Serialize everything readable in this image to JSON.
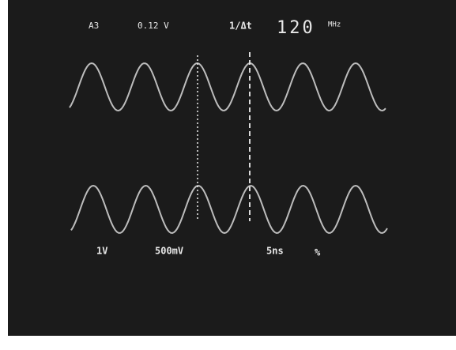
{
  "readout_top": {
    "channel": "A3",
    "cursor_voltage": "0.12 V",
    "cursor_mode": "1/Δt",
    "frequency": "120",
    "frequency_unit": "MHz"
  },
  "readout_bottom": {
    "ch1_scale": "1V",
    "ch2_scale": "500mV",
    "timebase": "5ns",
    "mode_symbol": "%"
  }
}
